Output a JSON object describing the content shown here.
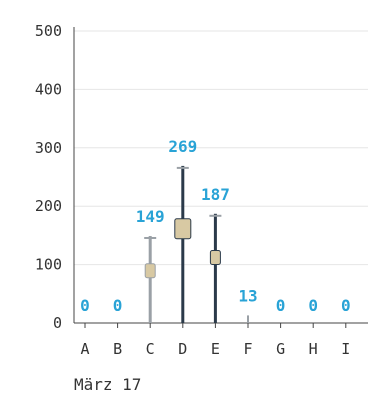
{
  "chart_data": {
    "type": "bar",
    "categories": [
      "A",
      "B",
      "C",
      "D",
      "E",
      "F",
      "G",
      "H",
      "I"
    ],
    "values": [
      0,
      0,
      149,
      269,
      187,
      13,
      0,
      0,
      0
    ],
    "xlabel": "März 17",
    "ylabel": "",
    "ylim": [
      0,
      500
    ],
    "yticks": [
      "0",
      "100",
      "200",
      "300",
      "400",
      "500"
    ],
    "grid": true,
    "legend": "none",
    "colors": {
      "label": "#29a3d6",
      "stem_dark": "#2b3a4a",
      "stem_light": "#9aa0a6",
      "axis": "#444444",
      "grid": "#e6e6e6"
    }
  }
}
